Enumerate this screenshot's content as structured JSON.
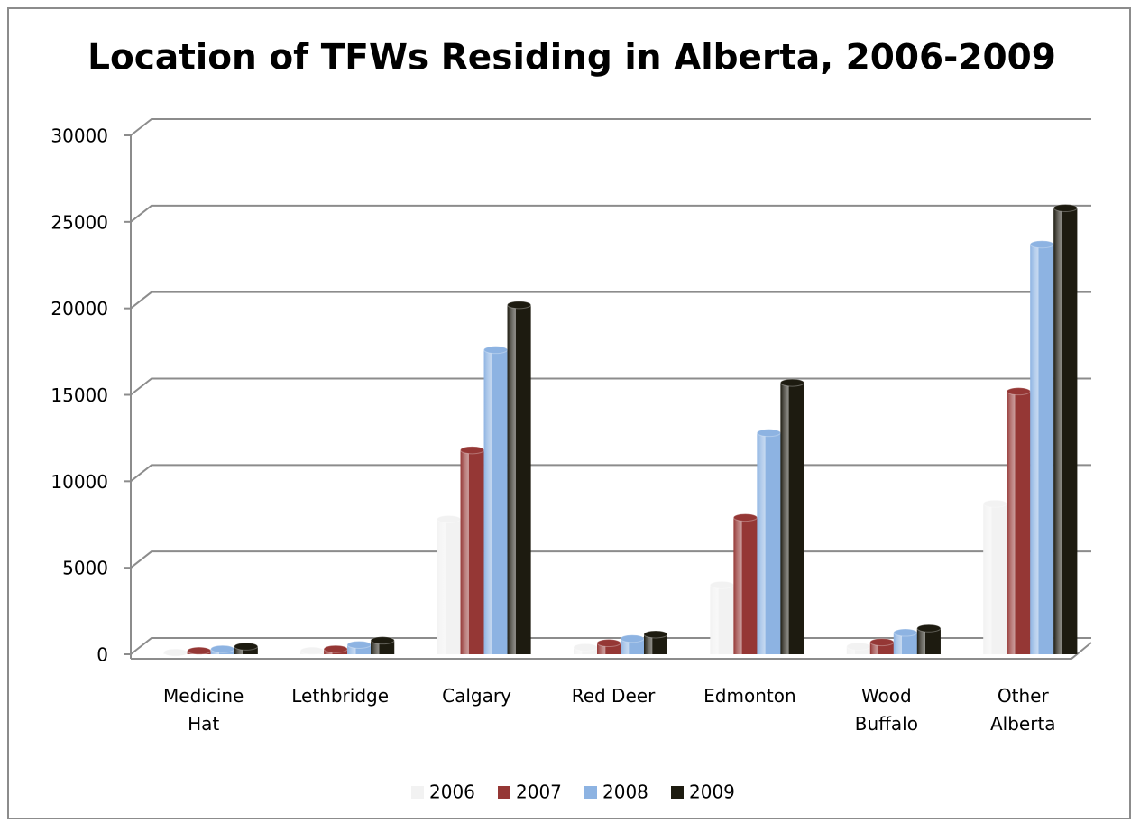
{
  "chart_data": {
    "type": "bar",
    "title": "Location of TFWs Residing in Alberta, 2006-2009",
    "categories": [
      "Medicine Hat",
      "Lethbridge",
      "Calgary",
      "Red Deer",
      "Edmonton",
      "Wood Buffalo",
      "Other Alberta"
    ],
    "series": [
      {
        "name": "2006",
        "color": "#f2f2f2",
        "values": [
          100,
          200,
          7800,
          400,
          4000,
          450,
          8700
        ]
      },
      {
        "name": "2007",
        "color": "#953735",
        "values": [
          200,
          300,
          11800,
          650,
          7900,
          700,
          15200
        ]
      },
      {
        "name": "2008",
        "color": "#8db3e2",
        "values": [
          300,
          550,
          17600,
          900,
          12800,
          1250,
          23700
        ]
      },
      {
        "name": "2009",
        "color": "#1d1b10",
        "values": [
          450,
          800,
          20200,
          1150,
          15700,
          1500,
          25800
        ]
      }
    ],
    "ylim": [
      0,
      30000
    ],
    "yticks": [
      0,
      5000,
      10000,
      15000,
      20000,
      25000,
      30000
    ],
    "grid": true,
    "legend": "bottom"
  }
}
